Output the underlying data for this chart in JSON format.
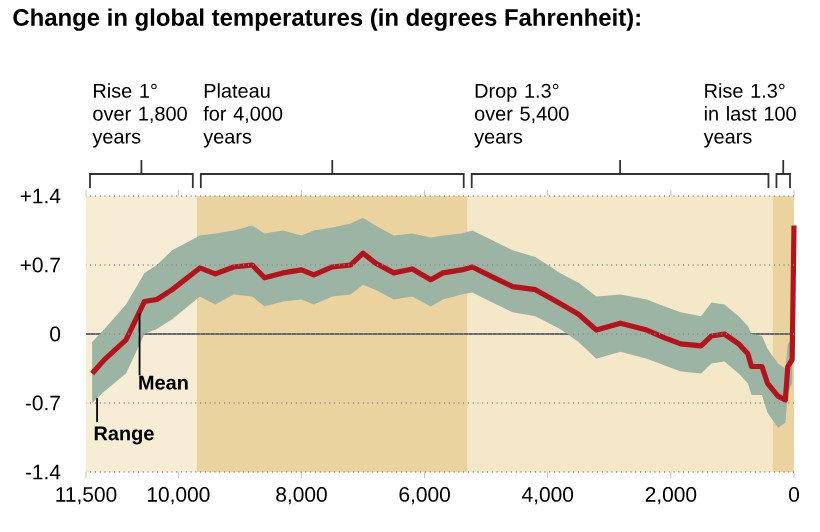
{
  "chart_data": {
    "type": "line",
    "title": "Change in global temperatures (in degrees Fahrenheit):",
    "x": [
      11400,
      11200,
      10850,
      10550,
      10350,
      10100,
      9650,
      9400,
      9100,
      8800,
      8600,
      8300,
      8000,
      7800,
      7500,
      7200,
      7000,
      6800,
      6500,
      6200,
      5900,
      5700,
      5400,
      5225,
      4900,
      4570,
      4200,
      3800,
      3500,
      3210,
      2820,
      2390,
      2100,
      1840,
      1510,
      1340,
      1130,
      900,
      750,
      690,
      520,
      430,
      260,
      140,
      100,
      30,
      0
    ],
    "series": [
      {
        "color": "#b5121b",
        "values": [
          -0.4,
          -0.26,
          -0.06,
          0.33,
          0.35,
          0.45,
          0.67,
          0.61,
          0.68,
          0.7,
          0.57,
          0.62,
          0.65,
          0.6,
          0.68,
          0.7,
          0.82,
          0.72,
          0.62,
          0.66,
          0.55,
          0.62,
          0.65,
          0.68,
          0.58,
          0.48,
          0.45,
          0.31,
          0.2,
          0.04,
          0.11,
          0.04,
          -0.04,
          -0.1,
          -0.12,
          -0.02,
          0.0,
          -0.1,
          -0.2,
          -0.33,
          -0.33,
          -0.5,
          -0.63,
          -0.67,
          -0.33,
          -0.26,
          1.1
        ],
        "lower": [
          -0.7,
          -0.58,
          -0.4,
          0.0,
          0.05,
          0.15,
          0.38,
          0.3,
          0.4,
          0.38,
          0.28,
          0.33,
          0.35,
          0.3,
          0.38,
          0.4,
          0.5,
          0.45,
          0.35,
          0.38,
          0.28,
          0.35,
          0.4,
          0.42,
          0.32,
          0.22,
          0.18,
          0.05,
          -0.08,
          -0.25,
          -0.18,
          -0.25,
          -0.32,
          -0.38,
          -0.4,
          -0.3,
          -0.28,
          -0.4,
          -0.5,
          -0.62,
          -0.62,
          -0.8,
          -0.95,
          -0.9,
          -0.6,
          -0.5,
          1.1
        ],
        "upper": [
          -0.08,
          0.05,
          0.3,
          0.62,
          0.7,
          0.85,
          1.0,
          1.02,
          1.05,
          1.1,
          1.02,
          1.05,
          1.0,
          1.05,
          1.08,
          1.12,
          1.18,
          1.1,
          1.0,
          1.02,
          0.98,
          1.0,
          1.02,
          1.05,
          0.95,
          0.85,
          0.78,
          0.62,
          0.52,
          0.38,
          0.4,
          0.35,
          0.28,
          0.22,
          0.18,
          0.32,
          0.3,
          0.18,
          0.08,
          0.0,
          -0.02,
          -0.15,
          -0.3,
          -0.35,
          -0.1,
          -0.05,
          1.1
        ]
      }
    ],
    "xlim": [
      11500,
      0
    ],
    "xticks": [
      {
        "value": 11500,
        "label": "11,500"
      },
      {
        "value": 10000,
        "label": "10,000"
      },
      {
        "value": 8000,
        "label": "8,000"
      },
      {
        "value": 6000,
        "label": "6,000"
      },
      {
        "value": 4000,
        "label": "4,000"
      },
      {
        "value": 2000,
        "label": "2,000"
      },
      0
    ],
    "ylim": [
      -1.4,
      1.4
    ],
    "yticks": [
      -1.4,
      -0.7,
      0,
      {
        "value": 0.7,
        "label": "+0.7"
      },
      {
        "value": 1.4,
        "label": "+1.4"
      }
    ],
    "grid": "y",
    "ref_lines": [
      {
        "axis": "y",
        "value": 0,
        "color": "#5b6b7b"
      }
    ],
    "bands": [
      {
        "axis": "x",
        "from": 11500,
        "to": 9700,
        "color": "#f7edd5",
        "label": "Rise 1° over 1,800 years"
      },
      {
        "axis": "x",
        "from": 9700,
        "to": 5300,
        "color": "#ebd3a0",
        "label": "Plateau for 4,000 years"
      },
      {
        "axis": "x",
        "from": 5300,
        "to": 350,
        "color": "#f5e8c8",
        "label": "Drop 1.3° over 5,400 years"
      },
      {
        "axis": "x",
        "from": 350,
        "to": 0,
        "color": "#ebd3a0",
        "label": "Rise 1.3° in last 100 years"
      }
    ],
    "annotations": [
      {
        "text": "Mean",
        "x": 10630,
        "y": 0.25
      },
      {
        "text": "Range",
        "x": 11320,
        "y": -0.63
      }
    ]
  }
}
